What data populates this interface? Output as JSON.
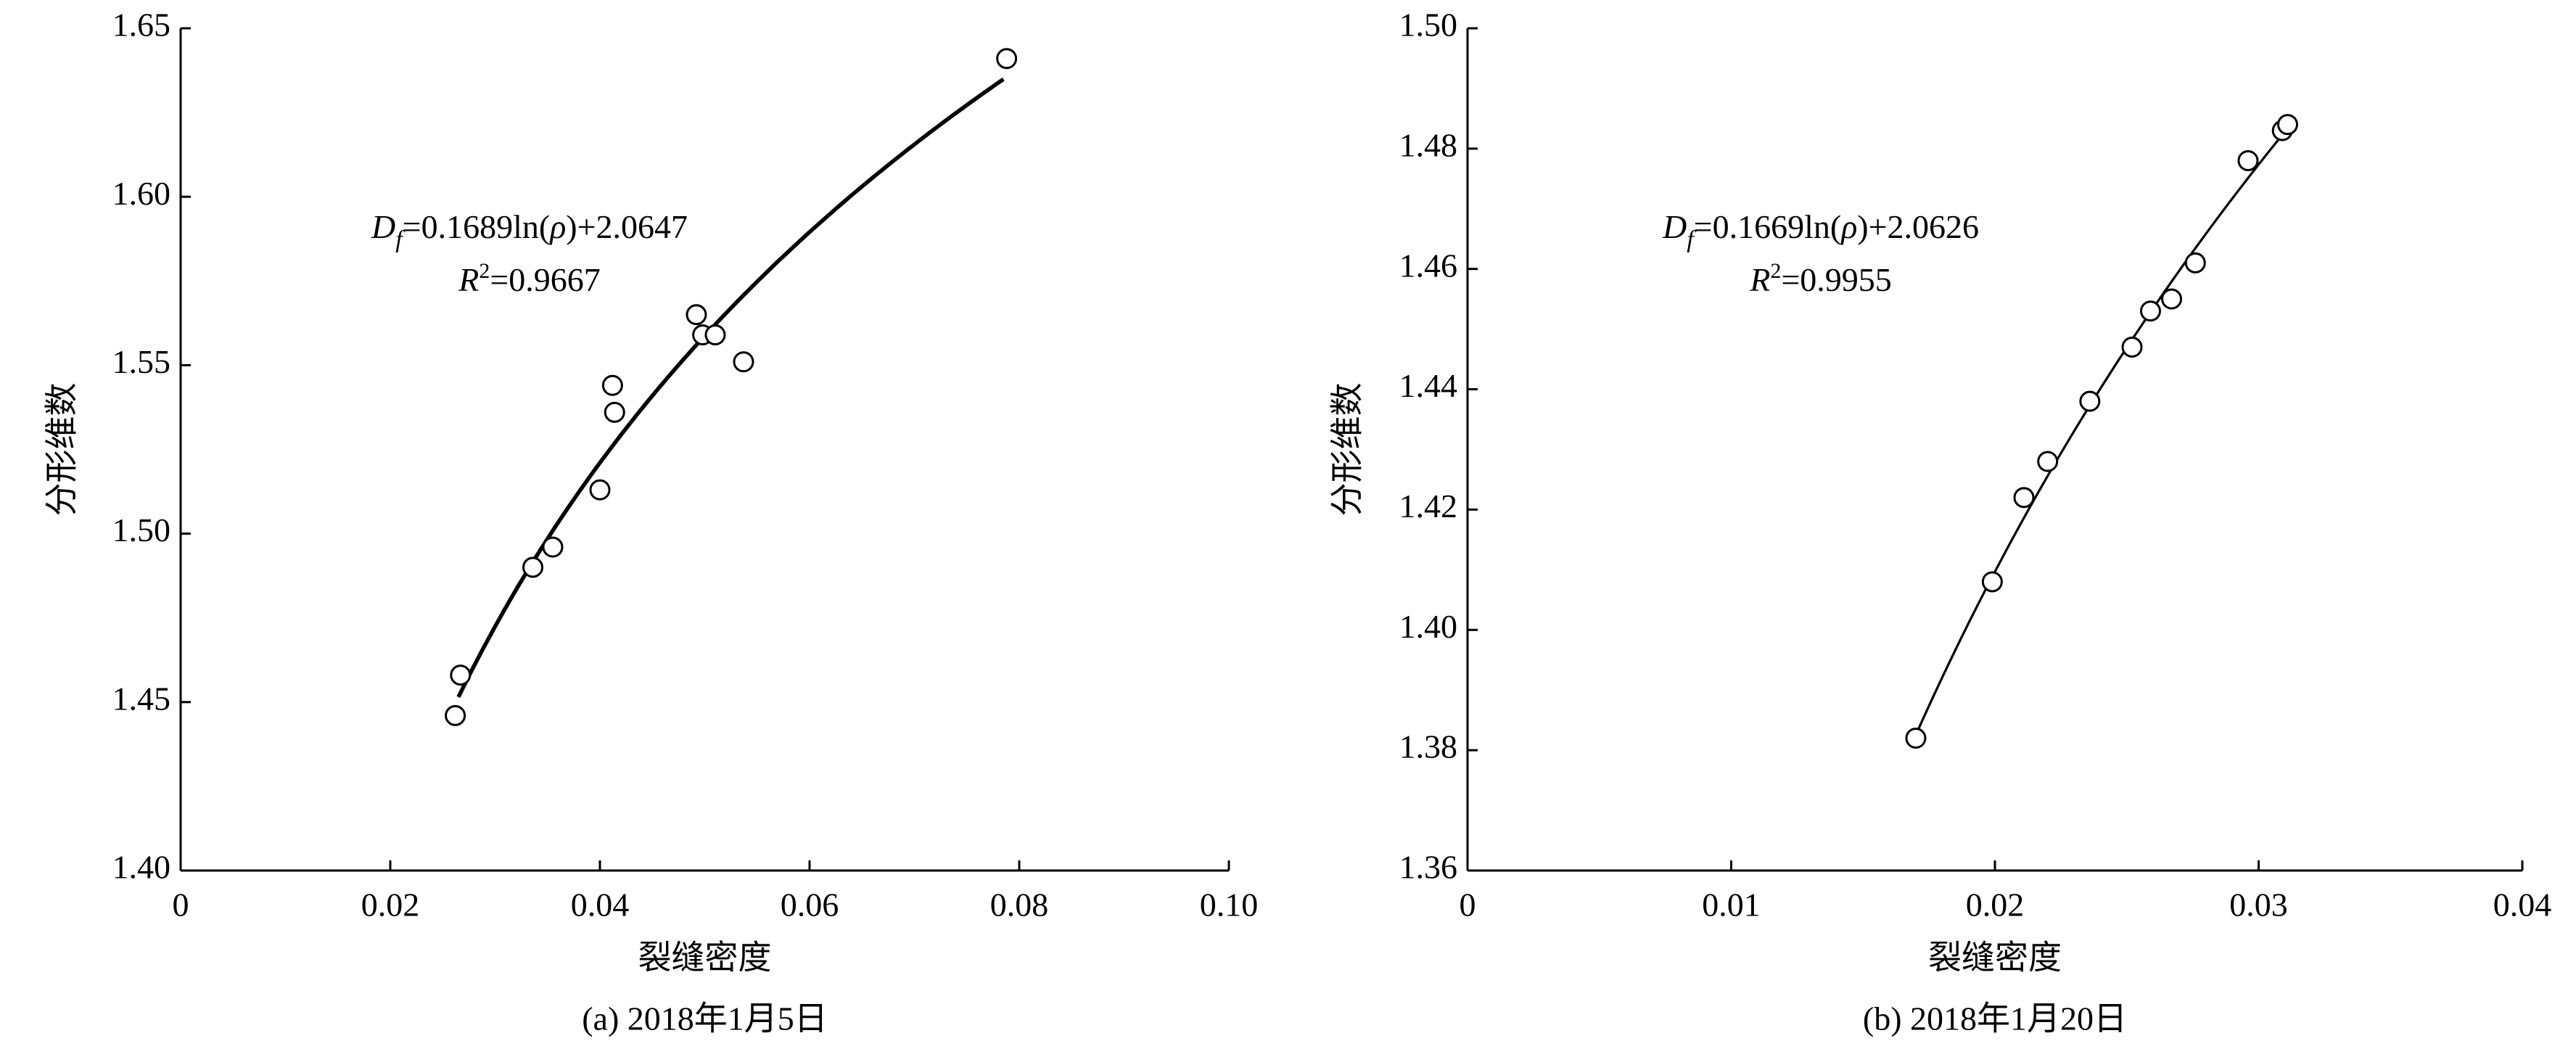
{
  "chart_data": [
    {
      "type": "scatter",
      "x_label": "裂缝密度",
      "y_label": "分形维数",
      "caption": "(a) 2018年1月5日",
      "x": [
        0.0262,
        0.0267,
        0.0336,
        0.0355,
        0.04,
        0.0412,
        0.0414,
        0.0492,
        0.0498,
        0.051,
        0.0537,
        0.0788
      ],
      "values": [
        1.446,
        1.458,
        1.49,
        1.496,
        1.513,
        1.544,
        1.536,
        1.565,
        1.559,
        1.559,
        1.551,
        1.641
      ],
      "xlim": [
        0,
        0.1
      ],
      "ylim": [
        1.4,
        1.65
      ],
      "xticks": [
        0,
        0.02,
        0.04,
        0.06,
        0.08,
        {
          "value": 0.1,
          "label": "0.10"
        }
      ],
      "yticks": [
        {
          "value": 1.4,
          "label": "1.40"
        },
        1.45,
        {
          "value": 1.5,
          "label": "1.50"
        },
        1.55,
        {
          "value": 1.6,
          "label": "1.60"
        },
        1.65
      ],
      "trendline": {
        "model": "log",
        "coefficients": [
          0.1689,
          2.0647
        ],
        "x_range": [
          0.0265,
          0.0785
        ]
      },
      "annotation": [
        [
          "D",
          "f",
          "=0.1689ln(",
          "ρ",
          ")+2.0647"
        ],
        [
          "R",
          "2",
          "=0.9667"
        ]
      ]
    },
    {
      "type": "scatter",
      "x_label": "裂缝密度",
      "y_label": "分形维数",
      "caption": "(b) 2018年1月20日",
      "x": [
        0.017,
        0.0199,
        0.0211,
        0.022,
        0.0236,
        0.0252,
        0.0259,
        0.0267,
        0.0276,
        0.0296,
        0.0309,
        0.0311
      ],
      "values": [
        1.382,
        1.408,
        1.422,
        1.428,
        1.438,
        1.447,
        1.453,
        1.455,
        1.461,
        1.478,
        1.483,
        1.484
      ],
      "xlim": [
        0,
        0.04
      ],
      "ylim": [
        1.36,
        1.5
      ],
      "xticks": [
        0,
        0.01,
        0.02,
        0.03,
        0.04
      ],
      "yticks": [
        1.36,
        1.38,
        {
          "value": 1.4,
          "label": "1.40"
        },
        1.42,
        1.44,
        1.46,
        1.48,
        {
          "value": 1.5,
          "label": "1.50"
        }
      ],
      "trendline": {
        "model": "log",
        "coefficients": [
          0.1669,
          2.0626
        ],
        "x_range": [
          0.017,
          0.0312
        ]
      },
      "annotation": [
        [
          "D",
          "f",
          "=0.1669ln(",
          "ρ",
          ")+2.0626"
        ],
        [
          "R",
          "2",
          "=0.9955"
        ]
      ]
    }
  ]
}
